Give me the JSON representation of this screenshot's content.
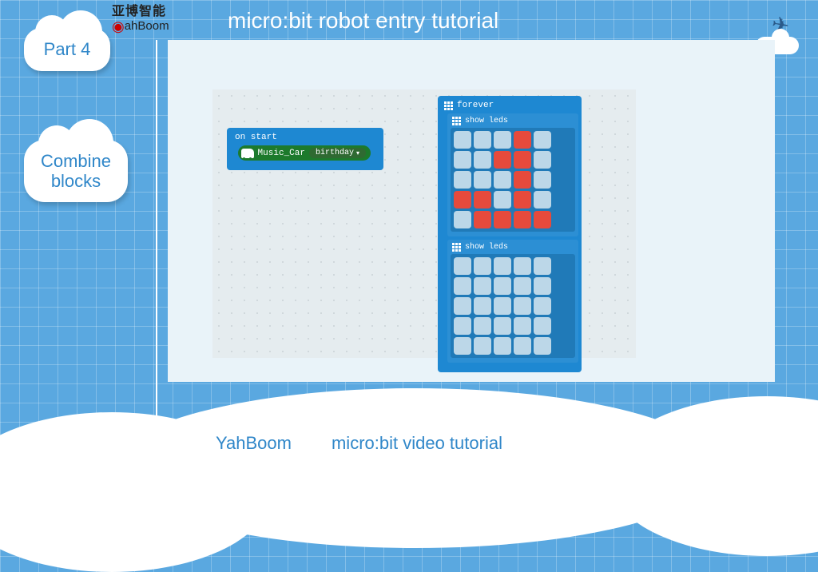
{
  "header": {
    "title": "micro:bit robot entry tutorial",
    "logo_line1": "亚博智能",
    "logo_brand": "ahBoom"
  },
  "sidebar": {
    "part_label": "Part 4",
    "section_line1": "Combine",
    "section_line2": "blocks"
  },
  "editor": {
    "on_start": {
      "label": "on start",
      "music_block": {
        "label": "Music_Car",
        "dropdown_value": "birthday"
      }
    },
    "forever": {
      "label": "forever",
      "show_leds_label": "show leds",
      "grid1_on": [
        0,
        0,
        0,
        1,
        0,
        0,
        0,
        1,
        1,
        0,
        0,
        0,
        0,
        1,
        0,
        1,
        1,
        0,
        1,
        0,
        0,
        1,
        1,
        1,
        1
      ],
      "grid2_on": [
        0,
        0,
        0,
        0,
        0,
        0,
        0,
        0,
        0,
        0,
        0,
        0,
        0,
        0,
        0,
        0,
        0,
        0,
        0,
        0,
        0,
        0,
        0,
        0,
        0
      ]
    }
  },
  "footer": {
    "brand": "YahBoom",
    "subtitle": "micro:bit video tutorial"
  },
  "colors": {
    "bg": "#5aa8e0",
    "canvas": "#e9f3f9",
    "block_blue": "#1e88d2",
    "block_green": "#1c7a2c",
    "led_on": "#e64a3c",
    "led_off": "#bcd7e8"
  }
}
